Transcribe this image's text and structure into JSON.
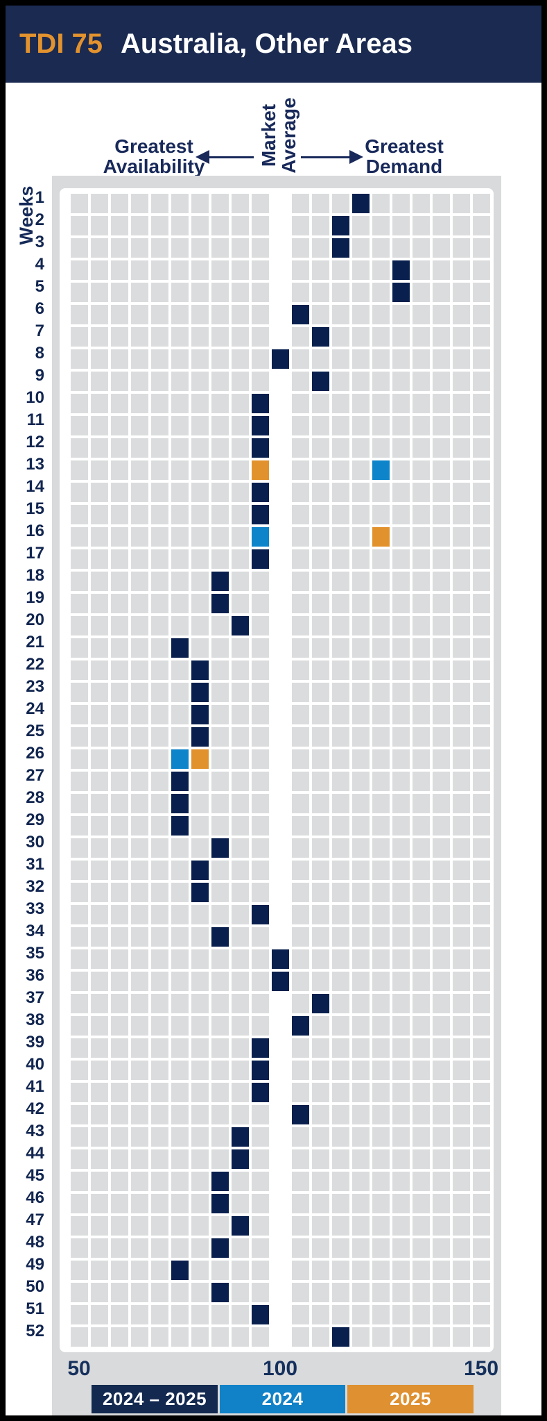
{
  "header": {
    "tdi_label": "TDI 75",
    "title": "Australia, Other Areas"
  },
  "annotations": {
    "greatest_availability_line1": "Greatest",
    "greatest_availability_line2": "Availability",
    "market_average_line1": "Market",
    "market_average_line2": "Average",
    "greatest_demand_line1": "Greatest",
    "greatest_demand_line2": "Demand"
  },
  "y_axis_label": "Weeks",
  "x_ticks": [
    "50",
    "100",
    "150"
  ],
  "legend": {
    "items": [
      {
        "label": "2024 – 2025",
        "color": "#13294f"
      },
      {
        "label": "2024",
        "color": "#1182c7"
      },
      {
        "label": "2025",
        "color": "#df9030"
      }
    ]
  },
  "colors": {
    "header_navy": "#1b2a50",
    "title_orange": "#e2922e",
    "panel_gray": "#d9dadb",
    "cell_gray": "#dbdcdd",
    "cell_navy": "#09204e",
    "cell_blue": "#0e84ca",
    "cell_orange": "#e2922d"
  },
  "chart_data": {
    "type": "heatmap",
    "title": "TDI 75 Australia, Other Areas",
    "x_axis": {
      "min": 50,
      "max": 100,
      "true_max": 150,
      "ticks": [
        50,
        100,
        150
      ],
      "bin_size": 5,
      "market_average_value": 100,
      "columns": 21
    },
    "y_axis": {
      "label": "Weeks",
      "first_week": 1,
      "last_week": 52
    },
    "series": [
      {
        "name": "2024 – 2025",
        "style": "navy",
        "points": [
          {
            "week": 1,
            "value": 120
          },
          {
            "week": 2,
            "value": 115
          },
          {
            "week": 3,
            "value": 115
          },
          {
            "week": 4,
            "value": 130
          },
          {
            "week": 5,
            "value": 130
          },
          {
            "week": 6,
            "value": 105
          },
          {
            "week": 7,
            "value": 110
          },
          {
            "week": 8,
            "value": 100
          },
          {
            "week": 9,
            "value": 110
          },
          {
            "week": 10,
            "value": 95
          },
          {
            "week": 11,
            "value": 95
          },
          {
            "week": 12,
            "value": 95
          },
          {
            "week": 14,
            "value": 95
          },
          {
            "week": 15,
            "value": 95
          },
          {
            "week": 17,
            "value": 95
          },
          {
            "week": 18,
            "value": 85
          },
          {
            "week": 19,
            "value": 85
          },
          {
            "week": 20,
            "value": 90
          },
          {
            "week": 21,
            "value": 75
          },
          {
            "week": 22,
            "value": 80
          },
          {
            "week": 23,
            "value": 80
          },
          {
            "week": 24,
            "value": 80
          },
          {
            "week": 25,
            "value": 80
          },
          {
            "week": 27,
            "value": 75
          },
          {
            "week": 28,
            "value": 75
          },
          {
            "week": 29,
            "value": 75
          },
          {
            "week": 30,
            "value": 85
          },
          {
            "week": 31,
            "value": 80
          },
          {
            "week": 32,
            "value": 80
          },
          {
            "week": 33,
            "value": 95
          },
          {
            "week": 34,
            "value": 85
          },
          {
            "week": 35,
            "value": 100
          },
          {
            "week": 36,
            "value": 100
          },
          {
            "week": 37,
            "value": 110
          },
          {
            "week": 38,
            "value": 105
          },
          {
            "week": 39,
            "value": 95
          },
          {
            "week": 40,
            "value": 95
          },
          {
            "week": 41,
            "value": 95
          },
          {
            "week": 42,
            "value": 105
          },
          {
            "week": 43,
            "value": 90
          },
          {
            "week": 44,
            "value": 90
          },
          {
            "week": 45,
            "value": 85
          },
          {
            "week": 46,
            "value": 85
          },
          {
            "week": 47,
            "value": 90
          },
          {
            "week": 48,
            "value": 85
          },
          {
            "week": 49,
            "value": 75
          },
          {
            "week": 50,
            "value": 85
          },
          {
            "week": 51,
            "value": 95
          },
          {
            "week": 52,
            "value": 115
          }
        ]
      },
      {
        "name": "2024",
        "style": "blue",
        "points": [
          {
            "week": 13,
            "value": 125
          },
          {
            "week": 16,
            "value": 95
          },
          {
            "week": 26,
            "value": 75
          }
        ]
      },
      {
        "name": "2025",
        "style": "orange",
        "points": [
          {
            "week": 13,
            "value": 95
          },
          {
            "week": 16,
            "value": 125
          },
          {
            "week": 26,
            "value": 80
          }
        ]
      }
    ]
  }
}
